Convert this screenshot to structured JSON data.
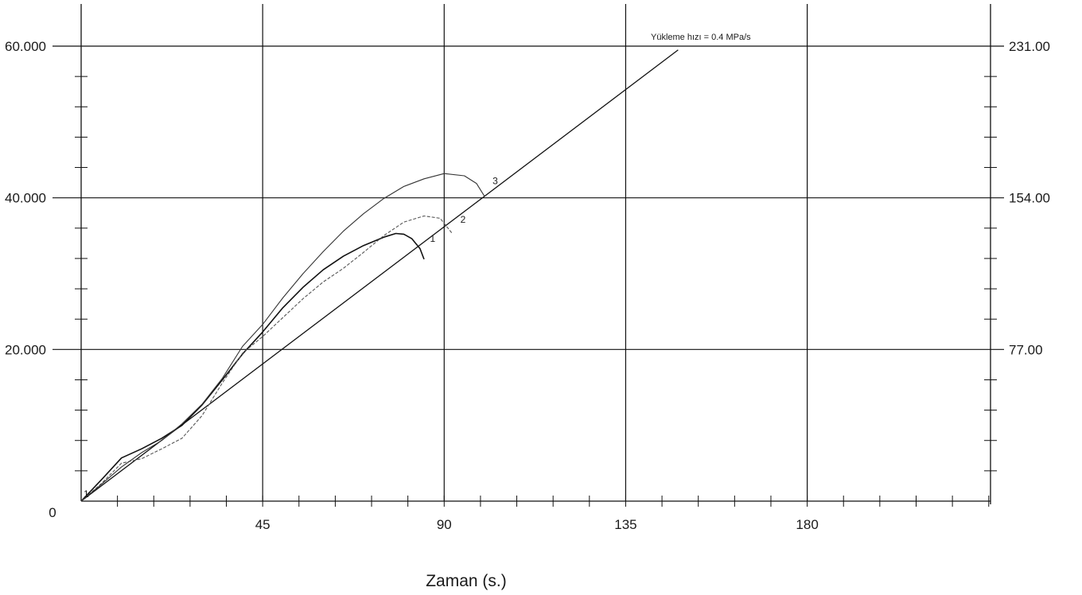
{
  "chart_data": {
    "type": "line",
    "title": "",
    "xlabel": "Zaman (s.)",
    "ylabel": "",
    "xlim": [
      0,
      225
    ],
    "ylim": [
      0,
      60000
    ],
    "grid": true,
    "x_ticks": [
      {
        "value": 45,
        "label": "45"
      },
      {
        "value": 90,
        "label": "90"
      },
      {
        "value": 135,
        "label": "135"
      },
      {
        "value": 180,
        "label": "180"
      }
    ],
    "y_ticks": [
      {
        "value": 0,
        "label": "0"
      },
      {
        "value": 20000,
        "label": "20.000"
      },
      {
        "value": 40000,
        "label": "40.000"
      },
      {
        "value": 60000,
        "label": "60.000"
      }
    ],
    "right_axis_ticks": [
      {
        "value": 20000,
        "label": "77.00"
      },
      {
        "value": 40000,
        "label": "154.00"
      },
      {
        "value": 60000,
        "label": "231.00"
      }
    ],
    "annotation": {
      "text": "Yükleme hızı = 0.4 MPa/s",
      "x": 140,
      "y": 60500
    },
    "loading_rate_line": {
      "x": [
        0,
        148
      ],
      "y": [
        0,
        59500
      ]
    },
    "series": [
      {
        "name": "1",
        "label_at": {
          "x": 86.5,
          "y": 34200
        },
        "x": [
          0,
          5,
          10,
          15,
          20,
          25,
          30,
          35,
          40,
          45,
          50,
          55,
          60,
          65,
          70,
          75,
          78,
          80,
          82,
          84,
          85
        ],
        "y": [
          0,
          2800,
          5700,
          6900,
          8300,
          10000,
          12700,
          16000,
          19400,
          22300,
          25500,
          28200,
          30500,
          32300,
          33700,
          34800,
          35300,
          35200,
          34600,
          33300,
          31900
        ]
      },
      {
        "name": "2",
        "label_at": {
          "x": 94,
          "y": 36700
        },
        "x": [
          0,
          5,
          10,
          15,
          20,
          25,
          30,
          35,
          40,
          45,
          50,
          55,
          60,
          65,
          70,
          75,
          80,
          85,
          89,
          92
        ],
        "y": [
          0,
          2300,
          5000,
          5600,
          6900,
          8300,
          11300,
          15600,
          19500,
          21700,
          24200,
          26700,
          28900,
          30700,
          32800,
          35000,
          36800,
          37600,
          37300,
          35300
        ]
      },
      {
        "name": "3",
        "label_at": {
          "x": 102,
          "y": 41800
        },
        "x": [
          0,
          5,
          10,
          15,
          20,
          25,
          30,
          35,
          40,
          45,
          50,
          55,
          60,
          65,
          70,
          75,
          80,
          85,
          90,
          95,
          98,
          100
        ],
        "y": [
          0,
          2200,
          4500,
          6400,
          8000,
          10200,
          12800,
          16200,
          20400,
          23300,
          26800,
          30000,
          32900,
          35600,
          37900,
          39900,
          41500,
          42500,
          43200,
          42900,
          41900,
          40200
        ]
      }
    ]
  }
}
